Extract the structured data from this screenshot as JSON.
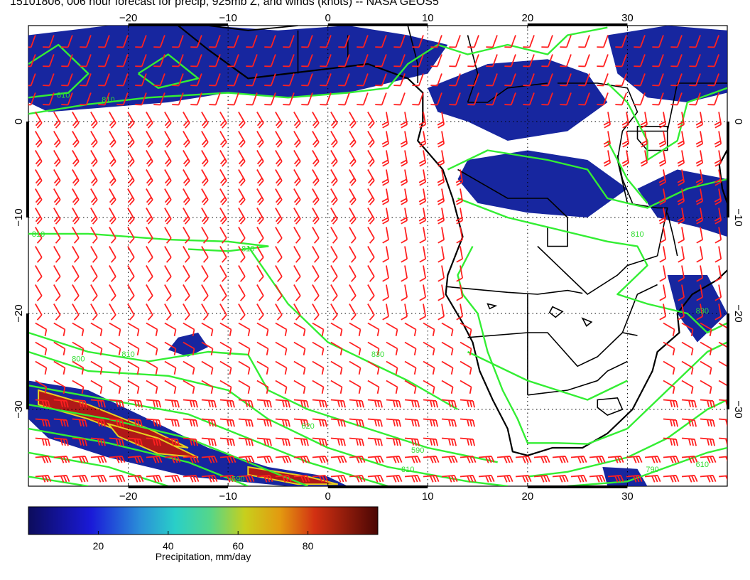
{
  "title": "15101806, 006 hour forecast for precip, 925mb Z, and winds (knots) -- NASA GEOS5",
  "map": {
    "lon_range": [
      -30,
      40
    ],
    "lat_range": [
      -38,
      10
    ],
    "lon_ticks": [
      -20,
      -10,
      0,
      10,
      20,
      30
    ],
    "lat_ticks": [
      0,
      -10,
      -20,
      -30
    ],
    "lon_tick_labels": [
      "−20",
      "−10",
      "0",
      "10",
      "20",
      "30"
    ],
    "lat_tick_labels": [
      "0",
      "−10",
      "−20",
      "−30"
    ],
    "contour_labels": [
      {
        "text": "810",
        "lon": -29,
        "lat": -12
      },
      {
        "text": "810",
        "lon": -8,
        "lat": -13.5
      },
      {
        "text": "810",
        "lon": -26.5,
        "lat": 2.5
      },
      {
        "text": "810",
        "lon": -22,
        "lat": 2
      },
      {
        "text": "800",
        "lon": -25,
        "lat": -25
      },
      {
        "text": "810",
        "lon": -20,
        "lat": -24.5
      },
      {
        "text": "830",
        "lon": 5,
        "lat": -24.5
      },
      {
        "text": "810",
        "lon": 31,
        "lat": -12
      },
      {
        "text": "830",
        "lon": 37.5,
        "lat": -20
      },
      {
        "text": "620",
        "lon": -2,
        "lat": -32
      },
      {
        "text": "590",
        "lon": 9,
        "lat": -34.5
      },
      {
        "text": "810",
        "lon": 8,
        "lat": -36.5
      },
      {
        "text": "790",
        "lon": 32.5,
        "lat": -36.5
      },
      {
        "text": "590",
        "lon": -9,
        "lat": -37.5
      },
      {
        "text": "610",
        "lon": 37.5,
        "lat": -36
      }
    ],
    "colors": {
      "wind_barbs": "#ff2020",
      "height_contours": "#33ee33",
      "coastlines": "#000000",
      "precip_low": "#00008c",
      "precip_high": "#800000"
    }
  },
  "colorbar": {
    "label": "Precipitation, mm/day",
    "ticks": [
      20,
      40,
      60,
      80
    ],
    "tick_labels": [
      "20",
      "40",
      "60",
      "80"
    ],
    "range": [
      0,
      100
    ]
  }
}
